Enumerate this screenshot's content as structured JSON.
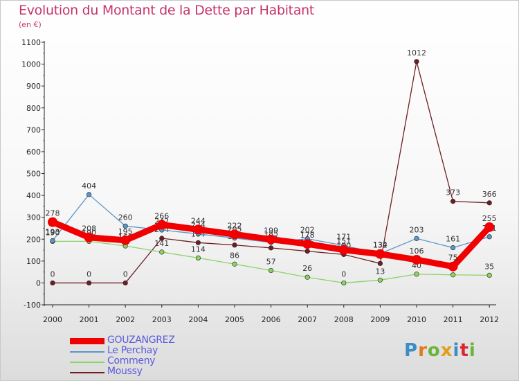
{
  "title": "Evolution du Montant de la Dette par Habitant",
  "unit_label": "(en €)",
  "logo_text": "Proxiti",
  "chart_data": {
    "type": "line",
    "title": "Evolution du Montant de la Dette par Habitant",
    "subtitle": "(en €)",
    "xlabel": "",
    "ylabel": "",
    "x": [
      "2000",
      "2001",
      "2002",
      "2003",
      "2004",
      "2005",
      "2006",
      "2007",
      "2008",
      "2009",
      "2010",
      "2011",
      "2012"
    ],
    "ylim": [
      -100,
      1100
    ],
    "yticks": [
      -100,
      0,
      100,
      200,
      300,
      400,
      500,
      600,
      700,
      800,
      900,
      1000,
      1100
    ],
    "grid": false,
    "legend_position": "bottom-left",
    "series": [
      {
        "name": "Moussy",
        "color": "#6e1e23",
        "values": [
          0,
          0,
          0,
          204,
          184,
          173,
          160,
          145,
          130,
          89,
          1012,
          373,
          366
        ],
        "labels": [
          "0",
          "0",
          "0",
          "204",
          "184",
          "173",
          "160",
          "145",
          "130",
          "89",
          "1012",
          "373",
          "366"
        ]
      },
      {
        "name": "Commeny",
        "color": "#8cd264",
        "values": [
          190,
          190,
          169,
          141,
          114,
          86,
          57,
          26,
          0,
          13,
          40,
          37,
          35
        ],
        "labels": [
          "190",
          "190",
          "169",
          "141",
          "114",
          "86",
          "57",
          "26",
          "0",
          "13",
          "40",
          "37",
          "35"
        ]
      },
      {
        "name": "Le Perchay",
        "color": "#5a96c8",
        "values": [
          193,
          404,
          260,
          242,
          224,
          205,
          185,
          202,
          171,
          134,
          203,
          161,
          211
        ],
        "labels": [
          "193",
          "404",
          "260",
          "242",
          "224",
          "205",
          "185",
          "202",
          "171",
          "134",
          "203",
          "161",
          "211"
        ]
      },
      {
        "name": "GOUZANGREZ",
        "color": "#f00000",
        "values": [
          278,
          208,
          195,
          266,
          244,
          222,
          199,
          178,
          151,
          132,
          106,
          75,
          255
        ],
        "labels": [
          "278",
          "208",
          "195",
          "266",
          "244",
          "222",
          "199",
          "178",
          "151",
          "132",
          "106",
          "75",
          "255"
        ]
      }
    ]
  }
}
